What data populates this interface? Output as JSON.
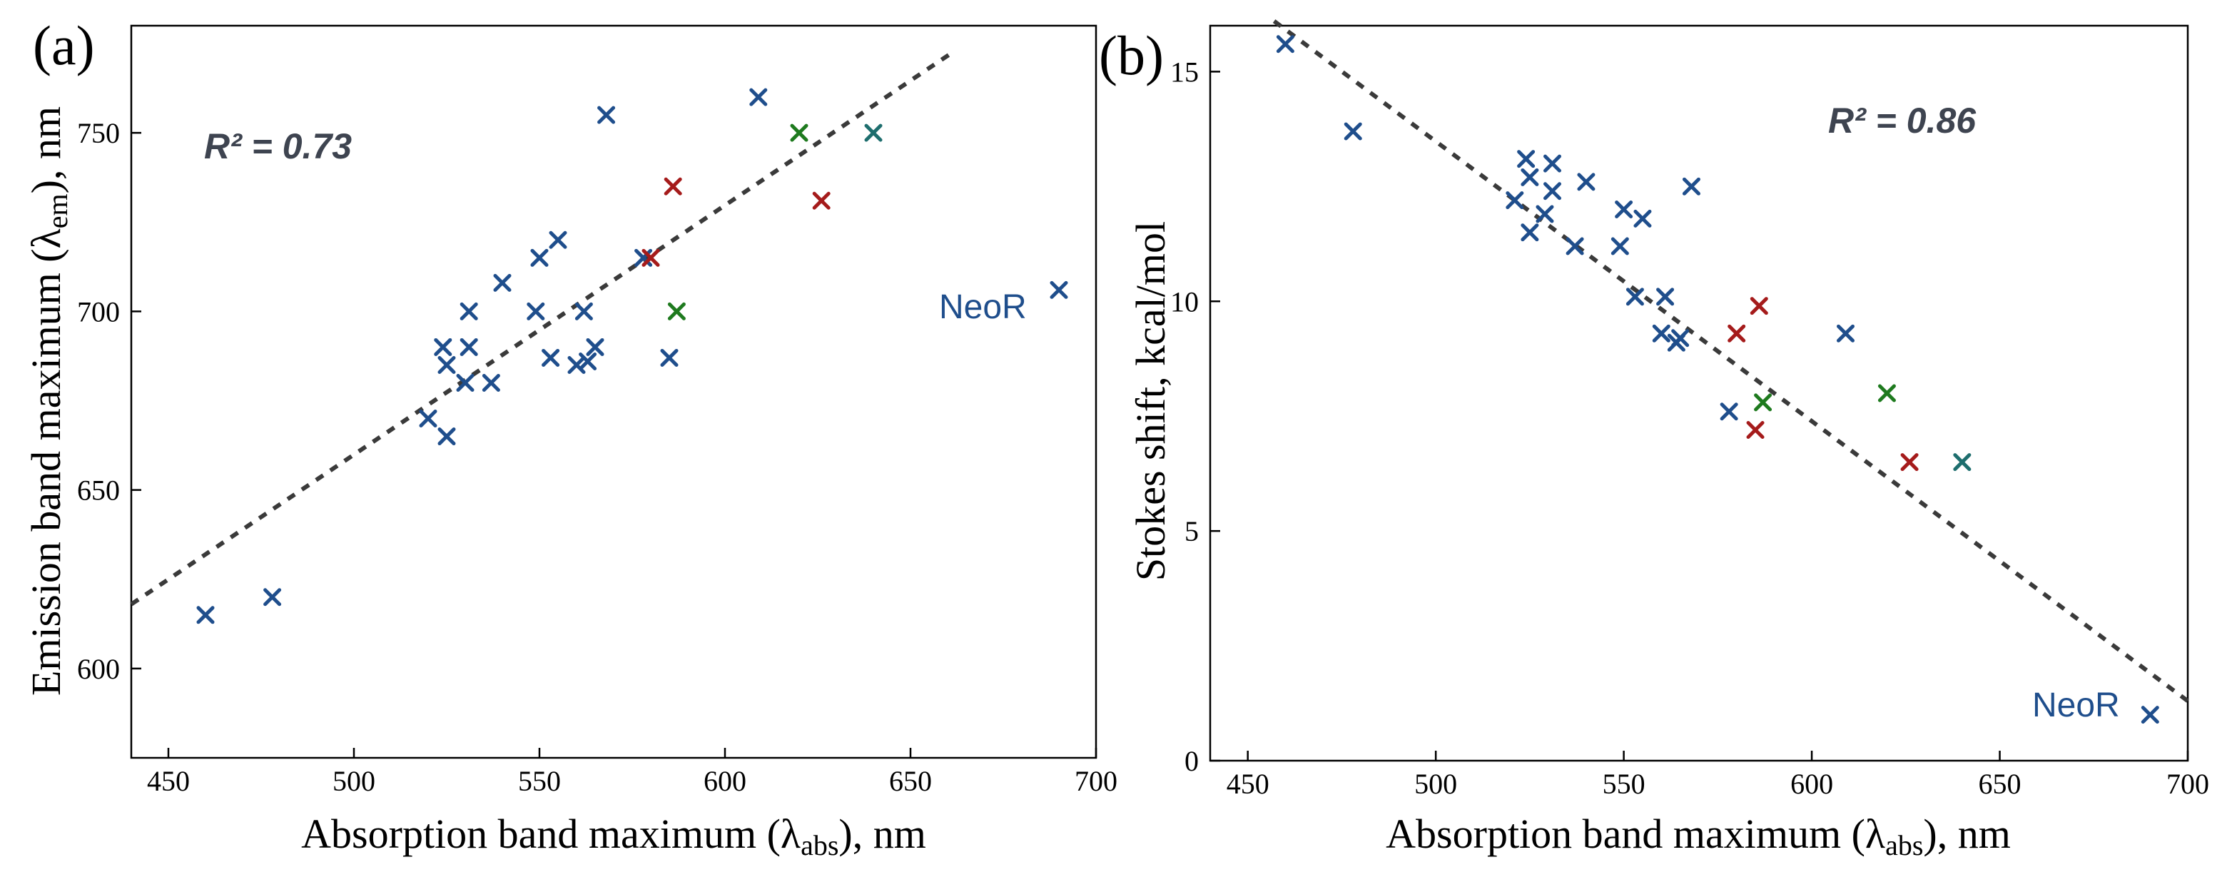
{
  "colors": {
    "blue": "#1f4e8c",
    "red": "#a51b1b",
    "green": "#1e7a1e",
    "teal": "#1e6e6e",
    "fit": "#3a3a3a",
    "r2": "#3e4450"
  },
  "chart_data": [
    {
      "type": "scatter",
      "panel_label": "(a)",
      "xlabel": "Absorption band maximum (λabs), nm",
      "xlabel_main": "Absorption band maximum (λ",
      "xlabel_sub": "abs",
      "xlabel_end": "), nm",
      "ylabel_main": "Emission band maximum (λ",
      "ylabel_sub": "em",
      "ylabel_end": "), nm",
      "xlim": [
        440,
        700
      ],
      "ylim": [
        575,
        780
      ],
      "xticks": [
        450,
        500,
        550,
        600,
        650,
        700
      ],
      "yticks": [
        600,
        650,
        700,
        750
      ],
      "annotation_r2": "R² = 0.73",
      "annotation_point_label": "NeoR",
      "annotation_point": [
        690,
        706
      ],
      "fit_line": [
        [
          440,
          618
        ],
        [
          662,
          773
        ]
      ],
      "series": [
        {
          "color": "blue",
          "points": [
            [
              460,
              615
            ],
            [
              478,
              620
            ],
            [
              520,
              670
            ],
            [
              525,
              665
            ],
            [
              524,
              690
            ],
            [
              525,
              685
            ],
            [
              530,
              680
            ],
            [
              531,
              690
            ],
            [
              531,
              700
            ],
            [
              537,
              680
            ],
            [
              540,
              708
            ],
            [
              549,
              700
            ],
            [
              550,
              715
            ],
            [
              553,
              687
            ],
            [
              555,
              720
            ],
            [
              560,
              685
            ],
            [
              562,
              700
            ],
            [
              563,
              686
            ],
            [
              565,
              690
            ],
            [
              568,
              755
            ],
            [
              578,
              715
            ],
            [
              585,
              687
            ],
            [
              609,
              760
            ],
            [
              690,
              706
            ]
          ]
        },
        {
          "color": "red",
          "points": [
            [
              580,
              715
            ],
            [
              586,
              735
            ],
            [
              626,
              731
            ]
          ]
        },
        {
          "color": "green",
          "points": [
            [
              587,
              700
            ],
            [
              620,
              750
            ]
          ]
        },
        {
          "color": "teal",
          "points": [
            [
              640,
              750
            ]
          ]
        }
      ]
    },
    {
      "type": "scatter",
      "panel_label": "(b)",
      "xlabel": "Absorption band maximum (λabs), nm",
      "xlabel_main": "Absorption band maximum (λ",
      "xlabel_sub": "abs",
      "xlabel_end": "), nm",
      "ylabel": "Stokes shift, kcal/mol",
      "xlim": [
        440,
        700
      ],
      "ylim": [
        0,
        16
      ],
      "xticks": [
        450,
        500,
        550,
        600,
        650,
        700
      ],
      "yticks": [
        0,
        5,
        10,
        15
      ],
      "annotation_r2": "R² = 0.86",
      "annotation_point_label": "NeoR",
      "annotation_point": [
        690,
        1.0
      ],
      "fit_line": [
        [
          457,
          16.1
        ],
        [
          700,
          1.3
        ]
      ],
      "series": [
        {
          "color": "blue",
          "points": [
            [
              460,
              15.6
            ],
            [
              478,
              13.7
            ],
            [
              521,
              12.2
            ],
            [
              524,
              13.1
            ],
            [
              525,
              12.7
            ],
            [
              525,
              11.5
            ],
            [
              529,
              11.9
            ],
            [
              531,
              12.4
            ],
            [
              531,
              13.0
            ],
            [
              537,
              11.2
            ],
            [
              540,
              12.6
            ],
            [
              549,
              11.2
            ],
            [
              550,
              12.0
            ],
            [
              553,
              10.1
            ],
            [
              555,
              11.8
            ],
            [
              560,
              9.3
            ],
            [
              561,
              10.1
            ],
            [
              564,
              9.1
            ],
            [
              565,
              9.2
            ],
            [
              568,
              12.5
            ],
            [
              578,
              7.6
            ],
            [
              609,
              9.3
            ],
            [
              690,
              1.0
            ]
          ]
        },
        {
          "color": "red",
          "points": [
            [
              580,
              9.3
            ],
            [
              585,
              7.2
            ],
            [
              586,
              9.9
            ],
            [
              626,
              6.5
            ]
          ]
        },
        {
          "color": "green",
          "points": [
            [
              587,
              7.8
            ],
            [
              620,
              8.0
            ]
          ]
        },
        {
          "color": "teal",
          "points": [
            [
              640,
              6.5
            ]
          ]
        }
      ]
    }
  ]
}
